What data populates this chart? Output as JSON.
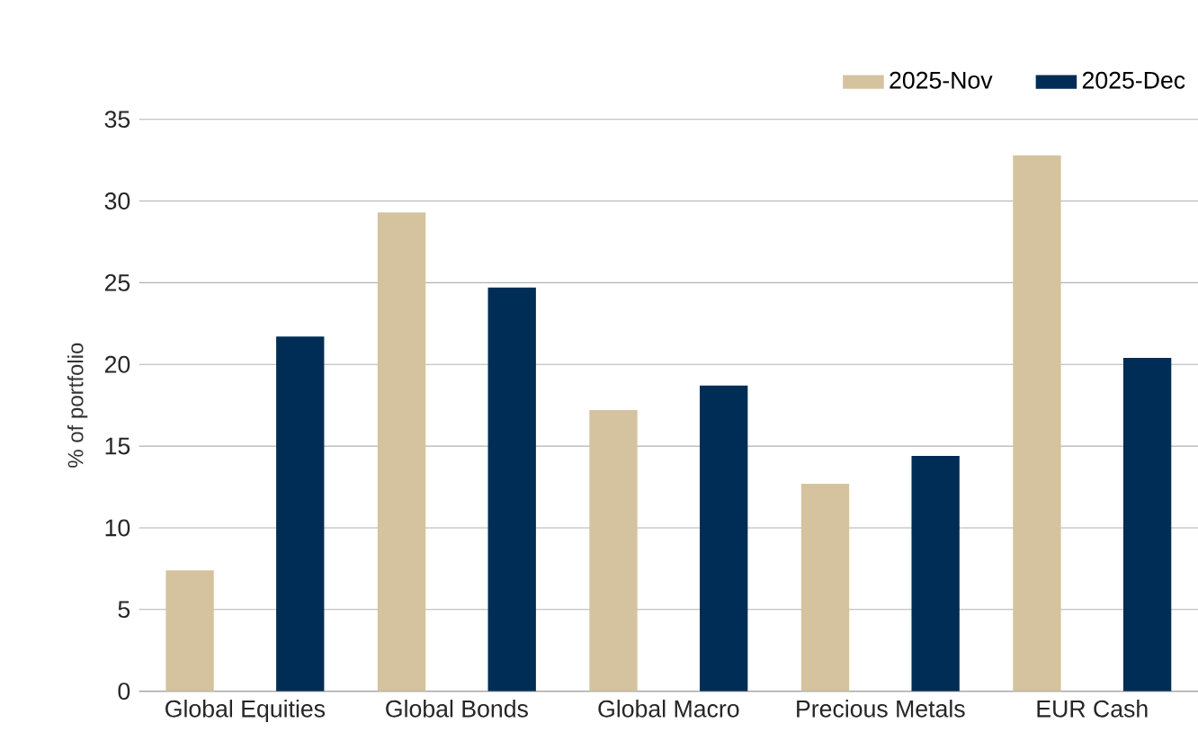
{
  "chart_data": {
    "type": "bar",
    "ylabel": "% of portfolio",
    "categories": [
      "Global Equities",
      "Global Bonds",
      "Global Macro",
      "Precious Metals",
      "EUR Cash"
    ],
    "series": [
      {
        "name": "2025-Nov",
        "color": "#d4c39e",
        "values": [
          7.4,
          29.3,
          17.2,
          12.7,
          32.8
        ]
      },
      {
        "name": "2025-Dec",
        "color": "#002d55",
        "values": [
          21.7,
          24.7,
          18.7,
          14.4,
          20.4
        ]
      }
    ],
    "ylim": [
      0,
      35
    ],
    "yticks": [
      0,
      5,
      10,
      15,
      20,
      25,
      30,
      35
    ],
    "grid": "y",
    "legend": "top right"
  }
}
